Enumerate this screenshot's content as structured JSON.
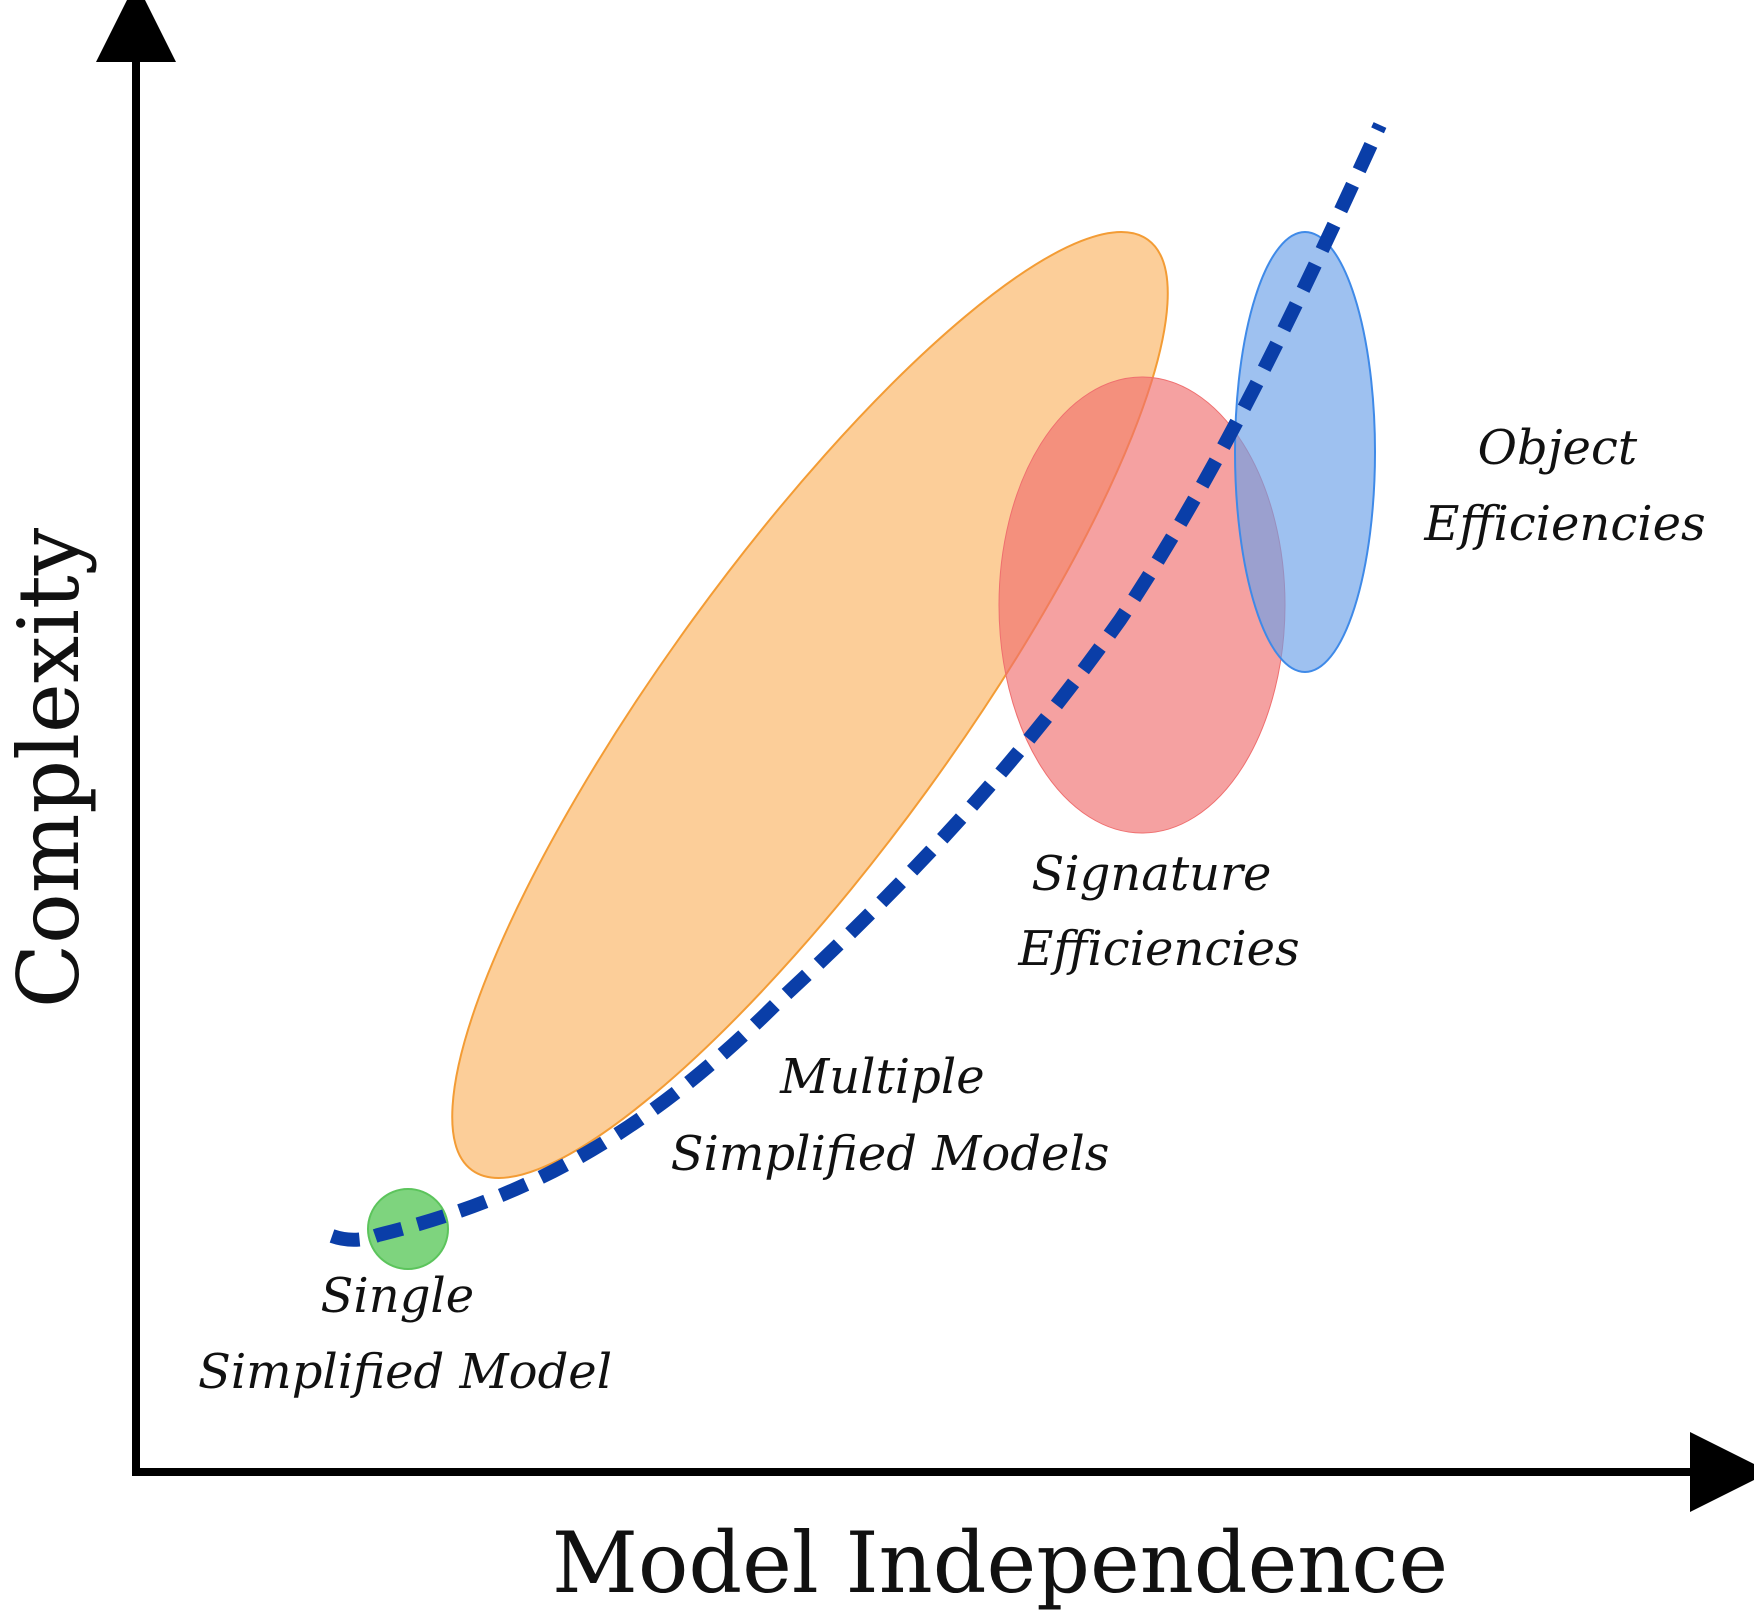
{
  "diagram": {
    "x_axis_label": "Model Independence",
    "y_axis_label": "Complexity",
    "regions": [
      {
        "id": "single",
        "lines": [
          "Single",
          "Simplified Model"
        ],
        "fill": "#7ed47e",
        "stroke": "#5cc45c"
      },
      {
        "id": "multiple",
        "lines": [
          "Multiple",
          "Simplified Models"
        ],
        "fill": "#fbb462",
        "stroke": "#f39c35"
      },
      {
        "id": "signature",
        "lines": [
          "Signature",
          "Efficiencies"
        ],
        "fill": "#ef6f6f",
        "stroke": "#ef6f6f"
      },
      {
        "id": "object",
        "lines": [
          "Object",
          "Efficiencies"
        ],
        "fill": "#6a9fe8",
        "stroke": "#3f8ae8"
      }
    ],
    "trend_line": {
      "color": "#0a3ea8",
      "style": "dashed"
    },
    "colors": {
      "axis": "#000000",
      "text": "#111111"
    }
  }
}
